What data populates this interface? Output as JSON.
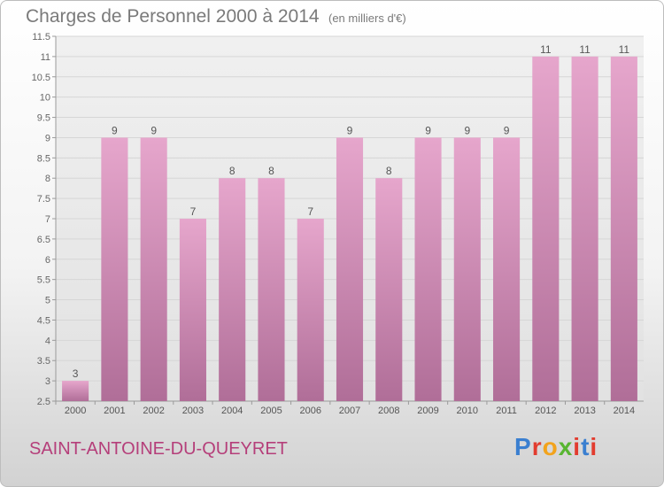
{
  "header": {
    "title": "Charges de Personnel 2000 à 2014",
    "subtitle": "(en milliers d'€)"
  },
  "footer": {
    "commune": "SAINT-ANTOINE-DU-QUEYRET",
    "logo": "Proxiti",
    "logo_colors": [
      "#3a7fd0",
      "#e23c2f",
      "#f2a31c",
      "#58b531",
      "#e23c2f",
      "#3a7fd0",
      "#e23c2f"
    ]
  },
  "chart_data": {
    "type": "bar",
    "title": "Charges de Personnel 2000 à 2014",
    "subtitle": "(en milliers d'€)",
    "categories": [
      "2000",
      "2001",
      "2002",
      "2003",
      "2004",
      "2005",
      "2006",
      "2007",
      "2008",
      "2009",
      "2010",
      "2011",
      "2012",
      "2013",
      "2014"
    ],
    "values": [
      3,
      9,
      9,
      7,
      8,
      8,
      7,
      9,
      8,
      9,
      9,
      9,
      11,
      11,
      11
    ],
    "data_labels": [
      "3",
      "9",
      "9",
      "7",
      "8",
      "8",
      "7",
      "9",
      "8",
      "9",
      "9",
      "9",
      "11",
      "11",
      "11"
    ],
    "ylim": [
      2.5,
      11.5
    ],
    "yticks": [
      "2.5",
      "3",
      "3.5",
      "4",
      "4.5",
      "5",
      "5.5",
      "6",
      "6.5",
      "7",
      "7.5",
      "8",
      "8.5",
      "9",
      "9.5",
      "10",
      "10.5",
      "11",
      "11.5"
    ],
    "grid": true,
    "bar_color_top": "#e6a6cc",
    "bar_color_bottom": "#b06e98"
  }
}
